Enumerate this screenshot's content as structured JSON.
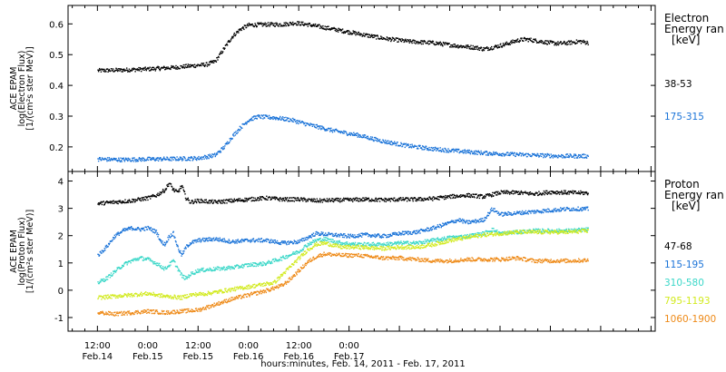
{
  "chart_data": [
    {
      "type": "scatter",
      "panel": "electron",
      "ylabel": [
        "ACE EPAM",
        "log(Electron Flux)",
        "[1/(cm²s ster MeV)]"
      ],
      "ylim": [
        0.12,
        0.66
      ],
      "yticks": [
        0.2,
        0.3,
        0.4,
        0.5,
        0.6
      ],
      "ytick_labels": [
        "0.2",
        "0.3",
        "0.4",
        "0.5",
        "0.6"
      ],
      "legend_title": [
        "Electron",
        "Energy ran",
        "[keV]"
      ],
      "series": [
        {
          "name": "38-53",
          "color": "#000000",
          "points": [
            [
              -12,
              0.45
            ],
            [
              -6,
              0.452
            ],
            [
              0,
              0.455
            ],
            [
              6,
              0.46
            ],
            [
              10,
              0.465
            ],
            [
              14,
              0.47
            ],
            [
              16,
              0.48
            ],
            [
              17,
              0.5
            ],
            [
              19,
              0.54
            ],
            [
              20,
              0.56
            ],
            [
              22,
              0.585
            ],
            [
              24,
              0.598
            ],
            [
              28,
              0.6
            ],
            [
              32,
              0.6
            ],
            [
              35,
              0.605
            ],
            [
              38,
              0.6
            ],
            [
              44,
              0.585
            ],
            [
              50,
              0.57
            ],
            [
              56,
              0.555
            ],
            [
              62,
              0.545
            ],
            [
              68,
              0.54
            ],
            [
              74,
              0.53
            ],
            [
              78,
              0.525
            ],
            [
              80,
              0.52
            ],
            [
              82,
              0.525
            ],
            [
              85,
              0.535
            ],
            [
              88,
              0.548
            ],
            [
              90,
              0.552
            ],
            [
              92,
              0.548
            ],
            [
              96,
              0.54
            ],
            [
              98,
              0.538
            ],
            [
              100,
              0.54
            ],
            [
              103,
              0.545
            ],
            [
              105,
              0.54
            ]
          ]
        },
        {
          "name": "175-315",
          "color": "#1a73d8",
          "points": [
            [
              -12,
              0.162
            ],
            [
              -6,
              0.16
            ],
            [
              0,
              0.162
            ],
            [
              6,
              0.163
            ],
            [
              12,
              0.165
            ],
            [
              16,
              0.175
            ],
            [
              18,
              0.2
            ],
            [
              20,
              0.235
            ],
            [
              22,
              0.265
            ],
            [
              24,
              0.29
            ],
            [
              26,
              0.3
            ],
            [
              30,
              0.297
            ],
            [
              34,
              0.29
            ],
            [
              38,
              0.275
            ],
            [
              44,
              0.255
            ],
            [
              50,
              0.24
            ],
            [
              56,
              0.22
            ],
            [
              62,
              0.205
            ],
            [
              68,
              0.195
            ],
            [
              74,
              0.188
            ],
            [
              80,
              0.182
            ],
            [
              86,
              0.178
            ],
            [
              92,
              0.175
            ],
            [
              98,
              0.172
            ],
            [
              105,
              0.172
            ]
          ]
        }
      ]
    },
    {
      "type": "scatter",
      "panel": "proton",
      "ylabel": [
        "ACE EPAM",
        "log(Proton Flux)",
        "[1/(cm²s ster MeV)]"
      ],
      "ylim": [
        -1.5,
        4.35
      ],
      "yticks": [
        -1,
        0,
        1,
        2,
        3,
        4
      ],
      "ytick_labels": [
        "-1",
        "0",
        "1",
        "2",
        "3",
        "4"
      ],
      "legend_title": [
        "Proton",
        "Energy ran",
        "[keV]"
      ],
      "series": [
        {
          "name": "47-68",
          "color": "#000000",
          "points": [
            [
              -12,
              3.2
            ],
            [
              -8,
              3.25
            ],
            [
              -4,
              3.3
            ],
            [
              0,
              3.4
            ],
            [
              2,
              3.5
            ],
            [
              4,
              3.7
            ],
            [
              5,
              3.95
            ],
            [
              6,
              3.7
            ],
            [
              7,
              3.6
            ],
            [
              8,
              3.85
            ],
            [
              9,
              3.4
            ],
            [
              10,
              3.25
            ],
            [
              12,
              3.3
            ],
            [
              16,
              3.25
            ],
            [
              20,
              3.3
            ],
            [
              24,
              3.35
            ],
            [
              28,
              3.4
            ],
            [
              32,
              3.35
            ],
            [
              36,
              3.35
            ],
            [
              40,
              3.3
            ],
            [
              44,
              3.32
            ],
            [
              48,
              3.33
            ],
            [
              52,
              3.35
            ],
            [
              56,
              3.33
            ],
            [
              60,
              3.35
            ],
            [
              64,
              3.35
            ],
            [
              68,
              3.38
            ],
            [
              72,
              3.45
            ],
            [
              76,
              3.5
            ],
            [
              80,
              3.45
            ],
            [
              84,
              3.6
            ],
            [
              88,
              3.6
            ],
            [
              92,
              3.55
            ],
            [
              96,
              3.62
            ],
            [
              100,
              3.6
            ],
            [
              105,
              3.58
            ]
          ]
        },
        {
          "name": "115-195",
          "color": "#1a73d8",
          "points": [
            [
              -12,
              1.3
            ],
            [
              -10,
              1.6
            ],
            [
              -8,
              2.0
            ],
            [
              -6,
              2.2
            ],
            [
              -4,
              2.3
            ],
            [
              -2,
              2.25
            ],
            [
              0,
              2.3
            ],
            [
              2,
              2.15
            ],
            [
              3,
              1.8
            ],
            [
              4,
              1.7
            ],
            [
              5,
              2.0
            ],
            [
              6,
              2.1
            ],
            [
              7,
              1.6
            ],
            [
              8,
              1.3
            ],
            [
              9,
              1.6
            ],
            [
              10,
              1.75
            ],
            [
              12,
              1.85
            ],
            [
              16,
              1.9
            ],
            [
              20,
              1.8
            ],
            [
              24,
              1.85
            ],
            [
              28,
              1.85
            ],
            [
              32,
              1.75
            ],
            [
              36,
              1.8
            ],
            [
              38,
              1.95
            ],
            [
              40,
              2.1
            ],
            [
              44,
              2.05
            ],
            [
              48,
              2.0
            ],
            [
              52,
              2.05
            ],
            [
              56,
              2.0
            ],
            [
              60,
              2.1
            ],
            [
              64,
              2.15
            ],
            [
              68,
              2.3
            ],
            [
              72,
              2.5
            ],
            [
              74,
              2.6
            ],
            [
              76,
              2.5
            ],
            [
              80,
              2.6
            ],
            [
              82,
              3.0
            ],
            [
              84,
              2.8
            ],
            [
              88,
              2.85
            ],
            [
              92,
              2.9
            ],
            [
              96,
              2.95
            ],
            [
              100,
              3.0
            ],
            [
              105,
              3.0
            ]
          ]
        },
        {
          "name": "310-580",
          "color": "#3ad7c8",
          "points": [
            [
              -12,
              0.3
            ],
            [
              -10,
              0.45
            ],
            [
              -8,
              0.7
            ],
            [
              -6,
              0.95
            ],
            [
              -4,
              1.1
            ],
            [
              -2,
              1.2
            ],
            [
              0,
              1.15
            ],
            [
              2,
              1.0
            ],
            [
              3,
              0.9
            ],
            [
              4,
              0.8
            ],
            [
              6,
              1.1
            ],
            [
              8,
              0.55
            ],
            [
              9,
              0.45
            ],
            [
              10,
              0.6
            ],
            [
              12,
              0.75
            ],
            [
              16,
              0.8
            ],
            [
              20,
              0.85
            ],
            [
              24,
              0.95
            ],
            [
              28,
              1.0
            ],
            [
              32,
              1.2
            ],
            [
              36,
              1.45
            ],
            [
              38,
              1.7
            ],
            [
              40,
              1.85
            ],
            [
              42,
              1.9
            ],
            [
              46,
              1.75
            ],
            [
              50,
              1.7
            ],
            [
              56,
              1.7
            ],
            [
              60,
              1.75
            ],
            [
              64,
              1.75
            ],
            [
              68,
              1.85
            ],
            [
              72,
              1.95
            ],
            [
              76,
              2.0
            ],
            [
              80,
              2.1
            ],
            [
              82,
              2.25
            ],
            [
              84,
              2.1
            ],
            [
              88,
              2.15
            ],
            [
              92,
              2.2
            ],
            [
              96,
              2.2
            ],
            [
              100,
              2.2
            ],
            [
              105,
              2.25
            ]
          ]
        },
        {
          "name": "795-1193",
          "color": "#d2ea1e",
          "points": [
            [
              -12,
              -0.25
            ],
            [
              -8,
              -0.2
            ],
            [
              -4,
              -0.15
            ],
            [
              0,
              -0.1
            ],
            [
              4,
              -0.2
            ],
            [
              8,
              -0.25
            ],
            [
              10,
              -0.15
            ],
            [
              14,
              -0.1
            ],
            [
              18,
              0.0
            ],
            [
              22,
              0.1
            ],
            [
              26,
              0.2
            ],
            [
              30,
              0.3
            ],
            [
              32,
              0.6
            ],
            [
              34,
              0.9
            ],
            [
              36,
              1.2
            ],
            [
              38,
              1.5
            ],
            [
              40,
              1.7
            ],
            [
              42,
              1.75
            ],
            [
              46,
              1.6
            ],
            [
              50,
              1.6
            ],
            [
              56,
              1.55
            ],
            [
              60,
              1.6
            ],
            [
              64,
              1.6
            ],
            [
              68,
              1.7
            ],
            [
              72,
              1.85
            ],
            [
              76,
              1.95
            ],
            [
              80,
              2.05
            ],
            [
              84,
              2.1
            ],
            [
              88,
              2.15
            ],
            [
              92,
              2.15
            ],
            [
              96,
              2.15
            ],
            [
              100,
              2.15
            ],
            [
              105,
              2.2
            ]
          ]
        },
        {
          "name": "1060-1900",
          "color": "#ee8a18",
          "points": [
            [
              -12,
              -0.8
            ],
            [
              -8,
              -0.85
            ],
            [
              -4,
              -0.8
            ],
            [
              0,
              -0.75
            ],
            [
              4,
              -0.8
            ],
            [
              8,
              -0.75
            ],
            [
              12,
              -0.7
            ],
            [
              16,
              -0.5
            ],
            [
              20,
              -0.3
            ],
            [
              24,
              -0.15
            ],
            [
              28,
              0.0
            ],
            [
              32,
              0.2
            ],
            [
              34,
              0.45
            ],
            [
              36,
              0.75
            ],
            [
              38,
              1.05
            ],
            [
              40,
              1.25
            ],
            [
              42,
              1.35
            ],
            [
              46,
              1.3
            ],
            [
              50,
              1.3
            ],
            [
              56,
              1.2
            ],
            [
              60,
              1.2
            ],
            [
              64,
              1.15
            ],
            [
              68,
              1.1
            ],
            [
              72,
              1.1
            ],
            [
              76,
              1.15
            ],
            [
              80,
              1.15
            ],
            [
              84,
              1.15
            ],
            [
              88,
              1.2
            ],
            [
              92,
              1.1
            ],
            [
              96,
              1.1
            ],
            [
              100,
              1.1
            ],
            [
              105,
              1.12
            ]
          ]
        }
      ]
    }
  ],
  "x_axis": {
    "xlabel": "hours:minutes, Feb. 14, 2011 - Feb. 17, 2011",
    "xlim": [
      -19,
      121
    ],
    "major_ticks": [
      {
        "x": -12,
        "label1": "12:00",
        "label2": "Feb.14"
      },
      {
        "x": 0,
        "label1": "0:00",
        "label2": "Feb.15"
      },
      {
        "x": 12,
        "label1": "12:00",
        "label2": "Feb.15"
      },
      {
        "x": 24,
        "label1": "0:00",
        "label2": "Feb.16"
      },
      {
        "x": 36,
        "label1": "12:00",
        "label2": "Feb.16"
      },
      {
        "x": 48,
        "label1": "0:00",
        "label2": "Feb.17"
      }
    ]
  }
}
